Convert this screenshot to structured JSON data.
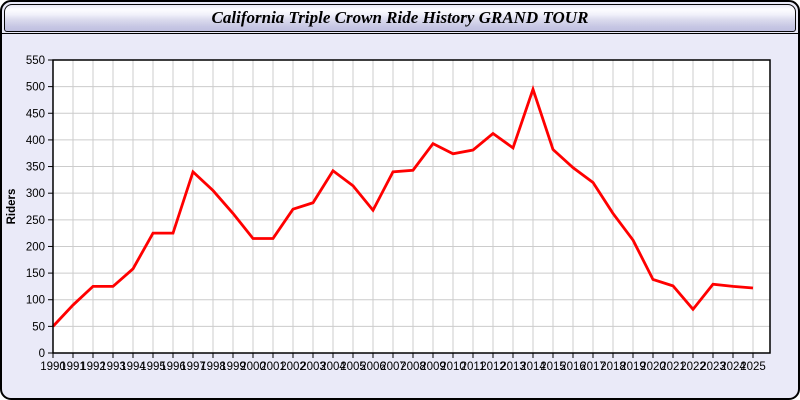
{
  "window": {
    "title": "California Triple Crown Ride History GRAND TOUR"
  },
  "chart_data": {
    "type": "line",
    "title": "California Triple Crown Ride History GRAND TOUR",
    "xlabel": "",
    "ylabel": "Riders",
    "ylim": [
      0,
      550
    ],
    "ytick_interval": 50,
    "grid": true,
    "legend": "none",
    "x": [
      1990,
      1991,
      1992,
      1993,
      1994,
      1995,
      1996,
      1997,
      1998,
      1999,
      2000,
      2001,
      2002,
      2003,
      2004,
      2005,
      2006,
      2007,
      2008,
      2009,
      2010,
      2011,
      2012,
      2013,
      2014,
      2015,
      2016,
      2017,
      2018,
      2019,
      2020,
      2021,
      2022,
      2023,
      2024,
      2025
    ],
    "series": [
      {
        "name": "Riders",
        "values": [
          50,
          90,
          125,
          125,
          158,
          225,
          225,
          340,
          305,
          262,
          215,
          215,
          270,
          282,
          342,
          314,
          268,
          340,
          343,
          393,
          374,
          381,
          412,
          385,
          495,
          382,
          348,
          320,
          262,
          212,
          138,
          126,
          82,
          129,
          125,
          122
        ]
      }
    ],
    "colors": {
      "line": "#ff0000",
      "plot_background": "#ffffff",
      "window_background": "#eaeaf8",
      "gridline": "#cccccc",
      "axis": "#000000",
      "text": "#000000"
    }
  }
}
